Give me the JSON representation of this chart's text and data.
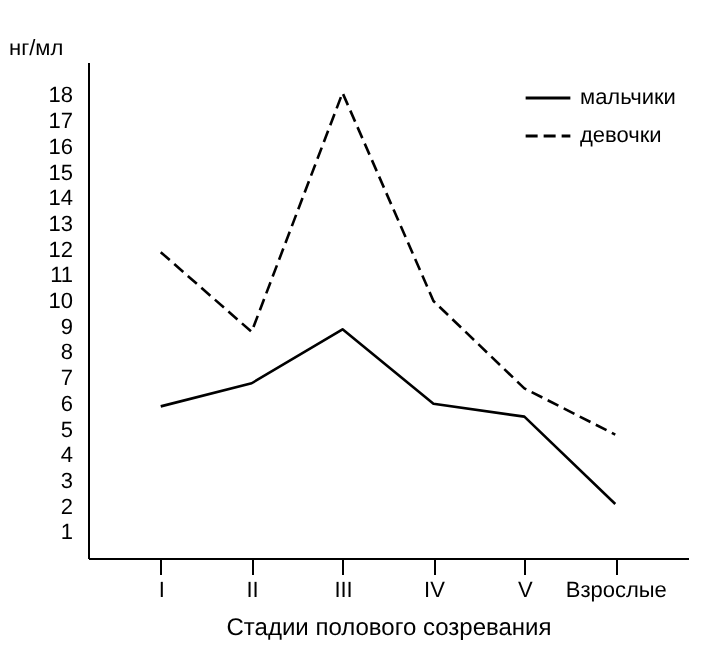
{
  "chart_data": {
    "type": "line",
    "ylabel": "нг/мл",
    "xlabel": "Стадии полового созревания",
    "categories": [
      "I",
      "II",
      "III",
      "IV",
      "V",
      "Взрослые"
    ],
    "series": [
      {
        "name": "мальчики",
        "color": "#000000",
        "line_style": "solid",
        "values": [
          5.9,
          6.8,
          8.9,
          6.0,
          5.5,
          2.1
        ]
      },
      {
        "name": "девочки",
        "color": "#000000",
        "line_style": "dashed",
        "values": [
          11.9,
          8.8,
          18.1,
          10.0,
          6.6,
          4.8
        ]
      }
    ],
    "ylim": [
      0,
      19.3
    ],
    "yticks": [
      1,
      2,
      3,
      4,
      5,
      6,
      7,
      8,
      9,
      10,
      11,
      12,
      13,
      14,
      15,
      16,
      17,
      18
    ],
    "grid": false,
    "legend": "top right",
    "marker": "none"
  }
}
